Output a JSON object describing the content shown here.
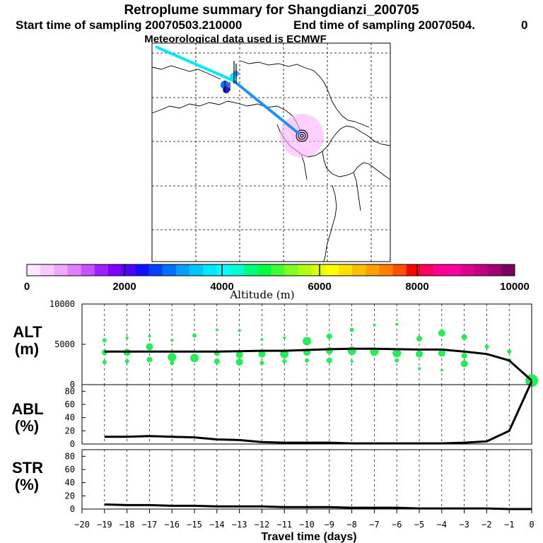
{
  "header": {
    "title": "Retroplume summary for Shangdianzi_200705",
    "start_label": "Start time of sampling 20070503.210000",
    "end_label": "End time of sampling 20070504.",
    "end_value": "0",
    "met_label": "Meteorological data used is ECMWF"
  },
  "colors": {
    "trajectory_early": "#00e8ff",
    "trajectory_late": "#1e90ff",
    "plume": "#ffb0ff",
    "abl_dots": "#22ee55",
    "line": "#000000"
  },
  "colorbar": {
    "title": "Altitude (m)",
    "ticks": [
      "0",
      "2000",
      "4000",
      "6000",
      "8000",
      "10000"
    ],
    "tick_values": [
      0,
      2000,
      4000,
      6000,
      8000,
      10000
    ],
    "range": [
      0,
      10000
    ],
    "colors": [
      "#ffe8ff",
      "#f8c8ff",
      "#f0a8ff",
      "#e080ff",
      "#c850ff",
      "#a020ff",
      "#8000ff",
      "#5000ff",
      "#1010ff",
      "#0040ff",
      "#0070ff",
      "#00a0ff",
      "#00c8ff",
      "#00e8ff",
      "#00ffff",
      "#00ffd0",
      "#00ff80",
      "#00ff40",
      "#40ff30",
      "#80ff20",
      "#b0ff10",
      "#e0ff00",
      "#ffff00",
      "#ffe000",
      "#ffc000",
      "#ffa000",
      "#ff8000",
      "#ff5000",
      "#ff0000",
      "#ff0060",
      "#ff0090",
      "#ff00a0",
      "#e00090",
      "#c00080",
      "#a00070",
      "#7a0060"
    ]
  },
  "chart_data": [
    {
      "type": "line",
      "panel": "ALT",
      "label_top": "ALT",
      "label_bottom": "(m)",
      "ylim": [
        0,
        10000
      ],
      "yticks": [
        "0",
        "5000",
        "10000"
      ],
      "ytick_values": [
        0,
        5000,
        10000
      ],
      "x": [
        -19,
        -18,
        -17,
        -16,
        -15,
        -14,
        -13,
        -12,
        -11,
        -10,
        -9,
        -8,
        -7,
        -6,
        -5,
        -4,
        -3,
        -2,
        -1,
        0
      ],
      "values": [
        4100,
        4100,
        4100,
        4100,
        4100,
        4100,
        4150,
        4200,
        4200,
        4300,
        4400,
        4450,
        4450,
        4400,
        4350,
        4350,
        4100,
        3800,
        3000,
        500
      ],
      "dots": {
        "x": [
          -19,
          -19,
          -19,
          -18,
          -18,
          -18,
          -17,
          -17,
          -17,
          -16,
          -16,
          -16,
          -15,
          -15,
          -14,
          -14,
          -14,
          -13,
          -13,
          -13,
          -12,
          -12,
          -12,
          -11,
          -11,
          -11,
          -10,
          -10,
          -10,
          -9,
          -9,
          -9,
          -8,
          -8,
          -8,
          -7,
          -7,
          -6,
          -6,
          -6,
          -5,
          -5,
          -5,
          -4,
          -4,
          -4,
          -3,
          -3,
          -3,
          -2,
          -1,
          -1,
          0
        ],
        "y": [
          5500,
          4000,
          2800,
          5800,
          4000,
          2900,
          6000,
          4700,
          3100,
          5500,
          3400,
          2700,
          6100,
          3300,
          6800,
          3900,
          2900,
          6700,
          3700,
          2800,
          5600,
          3800,
          2700,
          5800,
          3800,
          2900,
          5400,
          4000,
          3000,
          6000,
          4200,
          3000,
          6800,
          4200,
          2900,
          7400,
          4100,
          7500,
          3900,
          3000,
          5700,
          3800,
          2000,
          6400,
          3900,
          1800,
          5900,
          3600,
          2600,
          4700,
          4100,
          3000,
          500
        ],
        "size": [
          3,
          4,
          3,
          2,
          5,
          3,
          2,
          5,
          4,
          2,
          6,
          3,
          3,
          6,
          2,
          4,
          4,
          2,
          5,
          5,
          2,
          5,
          3,
          2,
          6,
          3,
          6,
          5,
          3,
          4,
          5,
          4,
          3,
          6,
          2,
          2,
          6,
          2,
          6,
          3,
          4,
          5,
          2,
          5,
          5,
          2,
          4,
          4,
          5,
          3,
          3,
          3,
          9
        ]
      }
    },
    {
      "type": "line",
      "panel": "ABL",
      "label_top": "ABL",
      "label_bottom": "(%)",
      "ylim": [
        0,
        90
      ],
      "yticks": [
        "0",
        "20",
        "40",
        "60",
        "80"
      ],
      "ytick_values": [
        0,
        20,
        40,
        60,
        80
      ],
      "x": [
        -19,
        -18,
        -17,
        -16,
        -15,
        -14,
        -13,
        -12,
        -11,
        -10,
        -9,
        -8,
        -7,
        -6,
        -5,
        -4,
        -3,
        -2,
        -1,
        0
      ],
      "values": [
        11,
        11,
        12,
        11,
        10,
        7,
        6,
        3,
        2,
        2,
        2,
        1,
        1,
        1,
        1,
        1,
        2,
        4,
        20,
        95
      ]
    },
    {
      "type": "line",
      "panel": "STR",
      "label_top": "STR",
      "label_bottom": "(%)",
      "ylim": [
        0,
        90
      ],
      "yticks": [
        "0",
        "20",
        "40",
        "60",
        "80"
      ],
      "ytick_values": [
        0,
        20,
        40,
        60,
        80
      ],
      "x": [
        -19,
        -18,
        -17,
        -16,
        -15,
        -14,
        -13,
        -12,
        -11,
        -10,
        -9,
        -8,
        -7,
        -6,
        -5,
        -4,
        -3,
        -2,
        -1,
        0
      ],
      "values": [
        7,
        6,
        6,
        5,
        5,
        4,
        4,
        4,
        3,
        3,
        3,
        2,
        2,
        2,
        1,
        1,
        1,
        1,
        0,
        0
      ]
    }
  ],
  "x_axis": {
    "title": "Travel time (days)",
    "ticks": [
      "−20",
      "−19",
      "−18",
      "−17",
      "−16",
      "−15",
      "−14",
      "−13",
      "−12",
      "−11",
      "−10",
      "−9",
      "−8",
      "−7",
      "−6",
      "−5",
      "−4",
      "−3",
      "−2",
      "−1",
      "0"
    ],
    "tick_values": [
      -20,
      -19,
      -18,
      -17,
      -16,
      -15,
      -14,
      -13,
      -12,
      -11,
      -10,
      -9,
      -8,
      -7,
      -6,
      -5,
      -4,
      -3,
      -2,
      -1,
      0
    ],
    "range": [
      -20,
      0
    ]
  }
}
